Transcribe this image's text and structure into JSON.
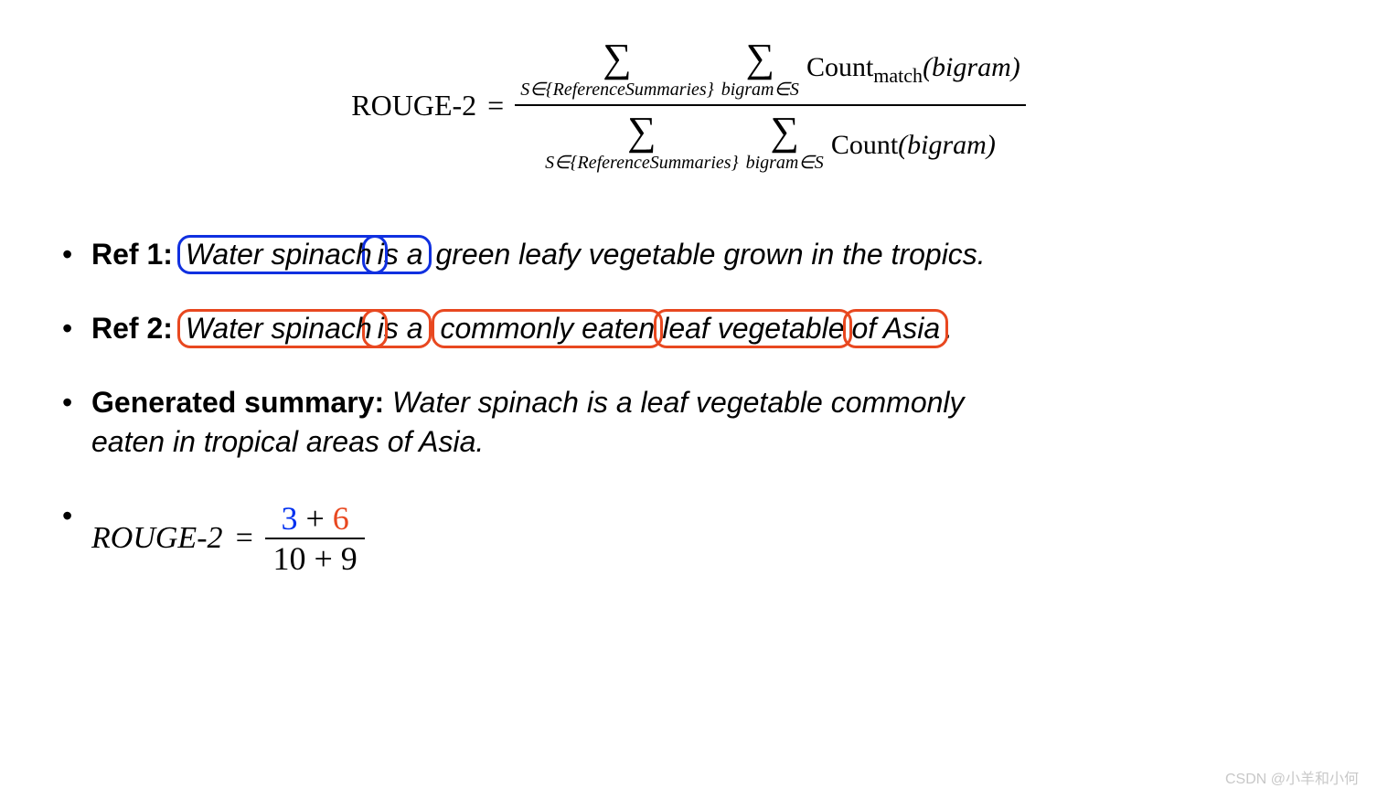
{
  "formula": {
    "lhs": "ROUGE-2",
    "eq": "=",
    "sum_symbol": "∑",
    "outer_sub": "S∈{ReferenceSummaries}",
    "inner_sub": "bigram∈S",
    "numer_func": "Count",
    "numer_sub": "match",
    "arg": "(bigram)",
    "denom_func": "Count"
  },
  "refs": {
    "ref1": {
      "label": "Ref 1:",
      "box1": "Water spinach",
      "box2": "is a",
      "tail": "green leafy vegetable grown in the tropics.",
      "box_color": "#1030e0"
    },
    "ref2": {
      "label": "Ref 2:",
      "box1": "Water spinach",
      "box2": "is a",
      "box3": "commonly eaten",
      "box4": "leaf vegetable",
      "box5": "of Asia",
      "tail": ".",
      "box_color": "#e84820"
    },
    "gen": {
      "label": "Generated summary:",
      "text1": "Water spinach is a leaf vegetable commonly",
      "text2": "eaten in tropical areas of Asia."
    }
  },
  "calc": {
    "label": "ROUGE-2",
    "eq": "=",
    "num_a": "3",
    "plus": "+",
    "num_b": "6",
    "den_a": "10",
    "den_b": "9",
    "colors": {
      "a": "#0030f0",
      "b": "#e84820"
    }
  },
  "watermark": "CSDN @小羊和小何"
}
